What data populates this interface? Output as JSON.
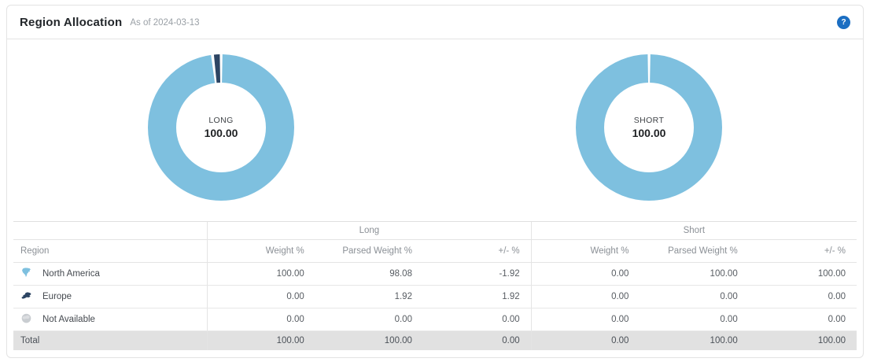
{
  "header": {
    "title": "Region Allocation",
    "as_of": "As of 2024-03-13",
    "help_icon": "?"
  },
  "colors": {
    "light_blue": "#7ec0df",
    "navy": "#2d4563",
    "gray": "#c9cdd1",
    "help_blue": "#1b6ec2",
    "total_row_bg": "#e1e1e1",
    "table_border": "#e4e4e4"
  },
  "chart_data": [
    {
      "type": "pie",
      "name": "long-donut",
      "center_label": "LONG",
      "center_value": "100.00",
      "legend_position": "none",
      "slices": [
        {
          "name": "North America",
          "value": 98.08,
          "color": "#7ec0df"
        },
        {
          "name": "Europe",
          "value": 1.92,
          "color": "#2d4563"
        }
      ]
    },
    {
      "type": "pie",
      "name": "short-donut",
      "center_label": "SHORT",
      "center_value": "100.00",
      "legend_position": "none",
      "slices": [
        {
          "name": "North America",
          "value": 100.0,
          "color": "#7ec0df"
        }
      ]
    }
  ],
  "table": {
    "group_headers": {
      "long": "Long",
      "short": "Short"
    },
    "columns": [
      "Region",
      "Weight %",
      "Parsed Weight %",
      "+/- %",
      "Weight %",
      "Parsed Weight %",
      "+/- %"
    ],
    "rows": [
      {
        "region": "North America",
        "icon": "north-america",
        "icon_color": "#7ec0df",
        "values": [
          "100.00",
          "98.08",
          "-1.92",
          "0.00",
          "100.00",
          "100.00"
        ]
      },
      {
        "region": "Europe",
        "icon": "europe",
        "icon_color": "#2d4563",
        "values": [
          "0.00",
          "1.92",
          "1.92",
          "0.00",
          "0.00",
          "0.00"
        ]
      },
      {
        "region": "Not Available",
        "icon": "globe",
        "icon_color": "#c9cdd1",
        "values": [
          "0.00",
          "0.00",
          "0.00",
          "0.00",
          "0.00",
          "0.00"
        ]
      }
    ],
    "total": {
      "label": "Total",
      "values": [
        "100.00",
        "100.00",
        "0.00",
        "0.00",
        "100.00",
        "100.00"
      ]
    }
  }
}
